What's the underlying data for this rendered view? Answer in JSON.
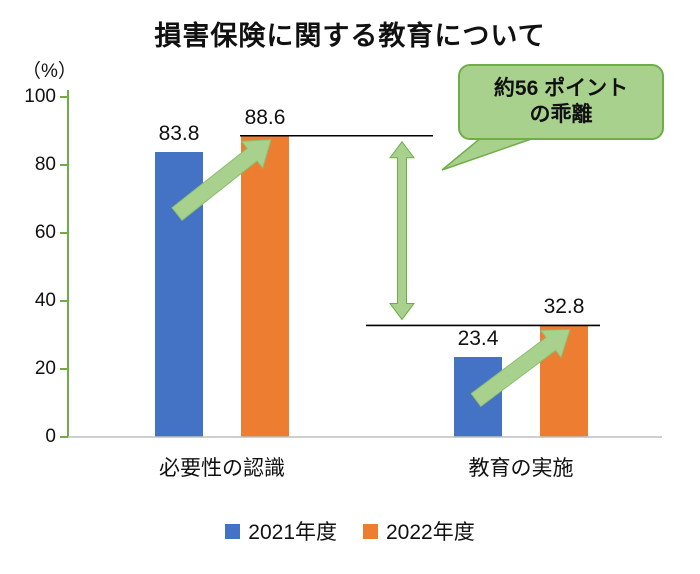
{
  "title": "損害保険に関する教育について",
  "y_axis_unit": "（%）",
  "chart_data": {
    "type": "bar",
    "categories": [
      "必要性の認識",
      "教育の実施"
    ],
    "series": [
      {
        "name": "2021年度",
        "color": "#4472C4",
        "values": [
          83.8,
          23.4
        ]
      },
      {
        "name": "2022年度",
        "color": "#ED7D31",
        "values": [
          88.6,
          32.8
        ]
      }
    ],
    "ylim": [
      0,
      100
    ],
    "y_ticks": [
      0,
      20,
      40,
      60,
      80,
      100
    ],
    "grid": false,
    "legend_position": "bottom",
    "value_labels": true
  },
  "annotation": {
    "callout_line1": "約56 ポイント",
    "callout_line2": "の乖離",
    "gap_points": 56
  },
  "colors": {
    "series_2021": "#4472C4",
    "series_2022": "#ED7D31",
    "annotation_green": "#A9D18E",
    "annotation_green_border": "#70AD47",
    "axis_green": "#70AD47",
    "baseline_gray": "#BFBFBF",
    "text": "#111111"
  }
}
